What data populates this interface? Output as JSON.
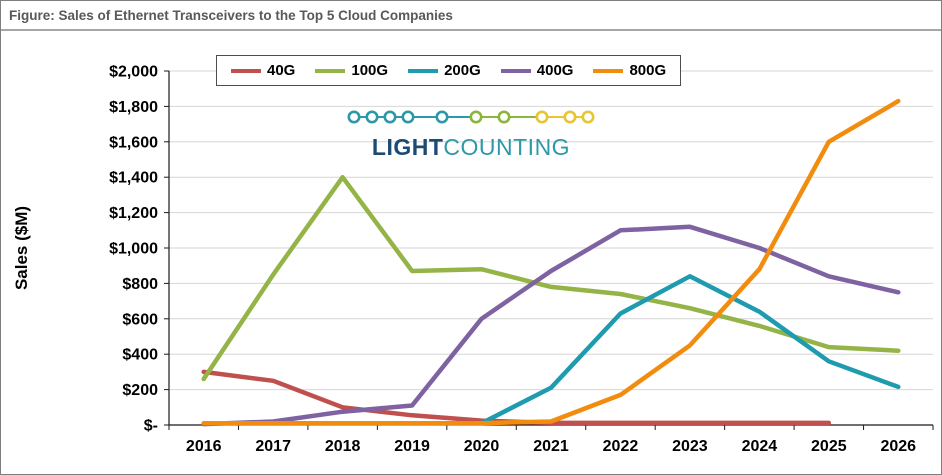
{
  "figure": {
    "title": "Figure: Sales of Ethernet Transceivers to the Top 5 Cloud Companies"
  },
  "logo": {
    "part1": "LIGHT",
    "part2": "COUNTING",
    "navy": "#1B4A73",
    "teal": "#2D99A8",
    "chain_colors": [
      "#2D99A8",
      "#2D99A8",
      "#2D99A8",
      "#2D99A8",
      "#2D99A8",
      "#8CB53B",
      "#8CB53B",
      "#E8C531",
      "#E8C531",
      "#E8C531"
    ]
  },
  "chart_data": {
    "type": "line",
    "title": "",
    "xlabel": "",
    "ylabel": "Sales ($M)",
    "ylim": [
      0,
      2000
    ],
    "ytick_step": 200,
    "ytick_labels": [
      "$-",
      "$200",
      "$400",
      "$600",
      "$800",
      "$1,000",
      "$1,200",
      "$1,400",
      "$1,600",
      "$1,800",
      "$2,000"
    ],
    "grid": true,
    "legend_position": "top-inside",
    "x_categories": [
      "2016",
      "2017",
      "2018",
      "2019",
      "2020",
      "2021",
      "2022",
      "2023",
      "2024",
      "2025",
      "2026"
    ],
    "series": [
      {
        "name": "40G",
        "color": "#C0504D",
        "values": [
          300,
          250,
          100,
          55,
          25,
          12,
          12,
          12,
          12,
          12,
          null
        ]
      },
      {
        "name": "100G",
        "color": "#94B447",
        "values": [
          260,
          850,
          1400,
          870,
          880,
          780,
          740,
          660,
          560,
          440,
          420
        ]
      },
      {
        "name": "200G",
        "color": "#1F9BB0",
        "values": [
          null,
          null,
          null,
          null,
          10,
          210,
          630,
          840,
          640,
          360,
          215
        ]
      },
      {
        "name": "400G",
        "color": "#7E62A1",
        "values": [
          5,
          20,
          75,
          110,
          600,
          870,
          1100,
          1120,
          1000,
          840,
          750
        ]
      },
      {
        "name": "800G",
        "color": "#F28C0F",
        "values": [
          10,
          10,
          10,
          10,
          10,
          20,
          170,
          450,
          880,
          1600,
          1830
        ]
      }
    ]
  }
}
